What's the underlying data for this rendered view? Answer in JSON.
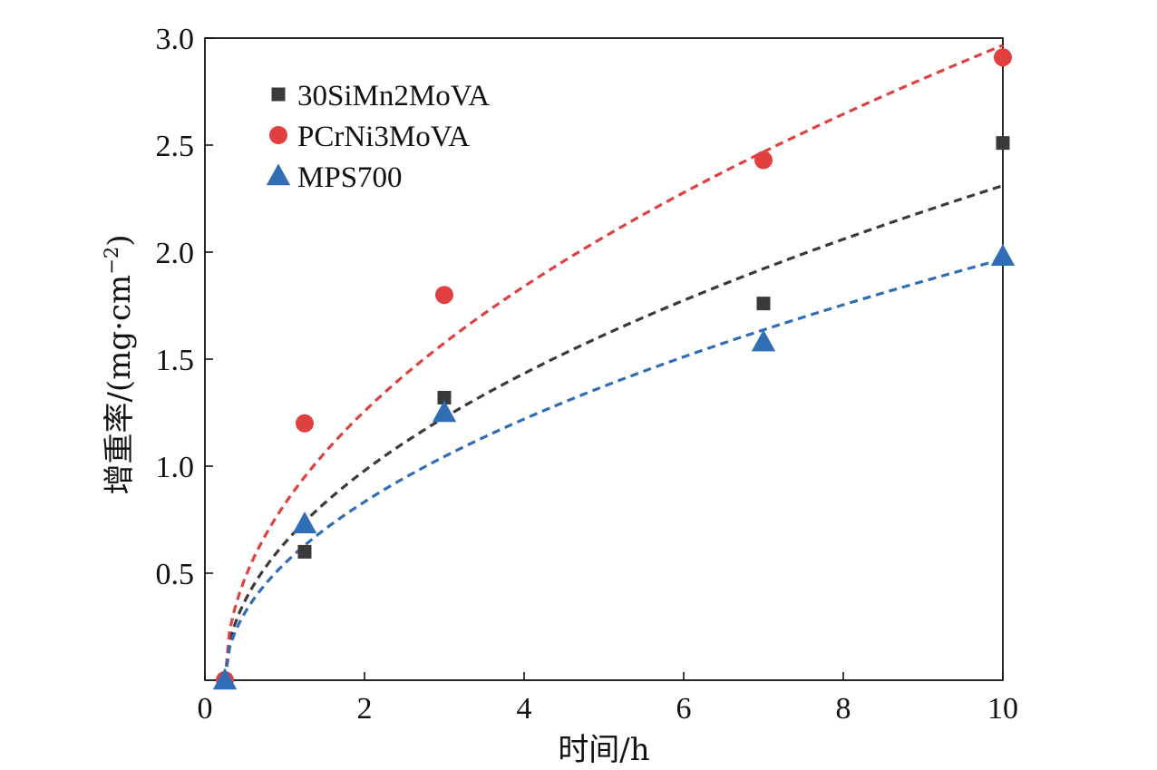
{
  "chart_data": {
    "type": "scatter",
    "title": "",
    "xlabel": "时间/h",
    "ylabel_main": "增重率/(mg·cm",
    "ylabel_sup": "−2",
    "ylabel_close": ")",
    "xlim": [
      0,
      10
    ],
    "ylim": [
      0,
      3.0
    ],
    "x_ticks": [
      0,
      2,
      4,
      6,
      8,
      10
    ],
    "x_tick_labels": [
      "0",
      "2",
      "4",
      "6",
      "8",
      "10"
    ],
    "y_ticks": [
      0.5,
      1.0,
      1.5,
      2.0,
      2.5,
      3.0
    ],
    "y_tick_labels": [
      "0.5",
      "1.0",
      "1.5",
      "2.0",
      "2.5",
      "3.0"
    ],
    "grid": false,
    "legend_position": "top-left",
    "x": [
      0.25,
      1.25,
      3,
      7,
      10
    ],
    "series": [
      {
        "name": "30SiMn2MoVA",
        "marker": "square",
        "color": "#3a3a3a",
        "values": [
          0.0,
          0.6,
          1.32,
          1.76,
          2.51
        ],
        "fit_coefficient": 0.74
      },
      {
        "name": "PCrNi3MoVA",
        "marker": "circle",
        "color": "#e04040",
        "values": [
          0.0,
          1.2,
          1.8,
          2.43,
          2.91
        ],
        "fit_coefficient": 0.95
      },
      {
        "name": "MPS700",
        "marker": "triangle",
        "color": "#2f6db5",
        "values": [
          0.0,
          0.73,
          1.25,
          1.58,
          1.98
        ],
        "fit_coefficient": 0.63
      }
    ]
  }
}
